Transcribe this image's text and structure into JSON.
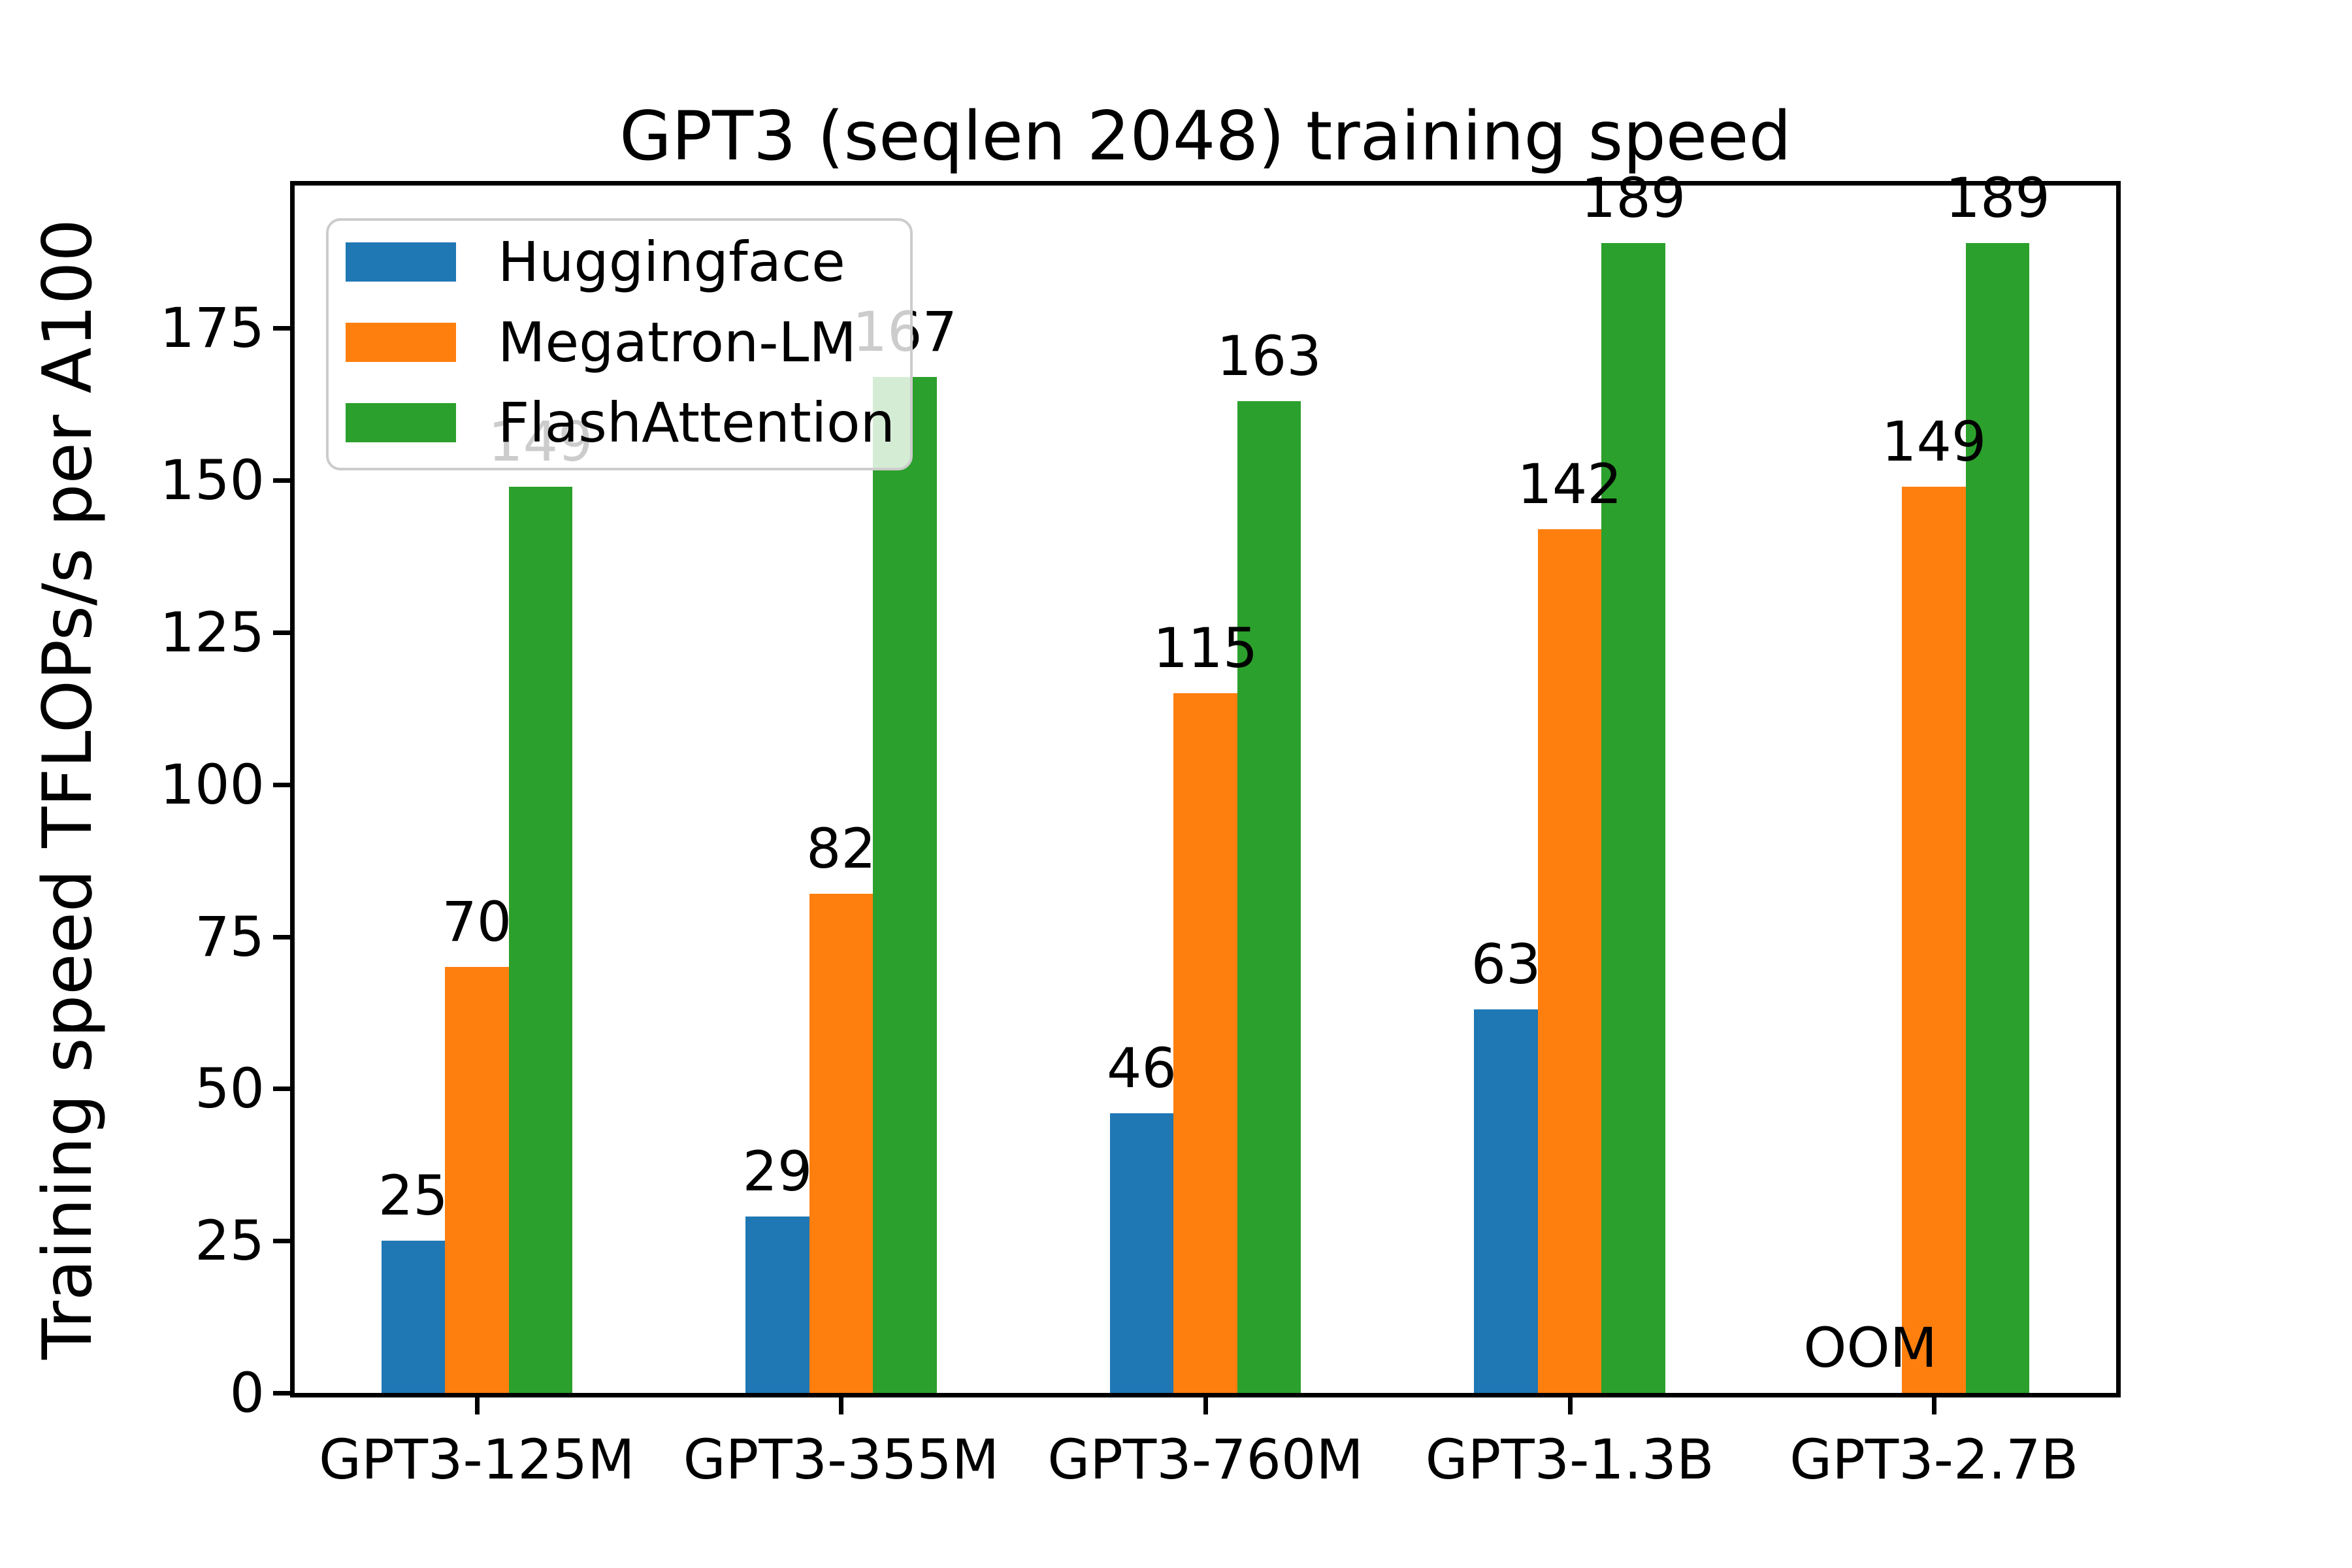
{
  "chart_data": {
    "type": "bar",
    "title": "GPT3 (seqlen 2048) training speed",
    "ylabel": "Training speed TFLOPs/s per A100",
    "xlabel": "",
    "categories": [
      "GPT3-125M",
      "GPT3-355M",
      "GPT3-760M",
      "GPT3-1.3B",
      "GPT3-2.7B"
    ],
    "series": [
      {
        "name": "Huggingface",
        "color": "#1f77b4",
        "values": [
          25,
          29,
          46,
          63,
          null
        ],
        "labels": [
          "25",
          "29",
          "46",
          "63",
          "OOM"
        ]
      },
      {
        "name": "Megatron-LM",
        "color": "#ff7f0e",
        "values": [
          70,
          82,
          115,
          142,
          149
        ],
        "labels": [
          "70",
          "82",
          "115",
          "142",
          "149"
        ]
      },
      {
        "name": "FlashAttention",
        "color": "#2ca02c",
        "values": [
          149,
          167,
          163,
          189,
          189
        ],
        "labels": [
          "149",
          "167",
          "163",
          "189",
          "189"
        ]
      }
    ],
    "yticks": [
      0,
      25,
      50,
      75,
      100,
      125,
      150,
      175
    ],
    "ylim": [
      0,
      198.45
    ],
    "grid": false,
    "legend_position": "upper left",
    "background_color": "#ffffff",
    "text_color": "#000000",
    "oom_note": "OOM shown where Huggingface ran out of memory on GPT3-2.7B"
  }
}
